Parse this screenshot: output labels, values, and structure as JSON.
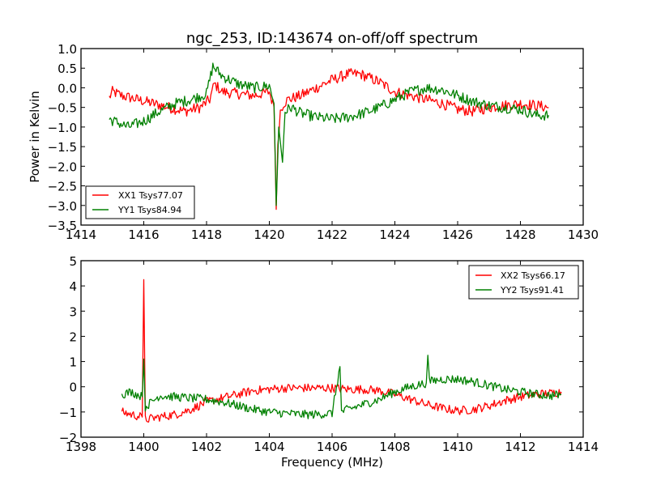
{
  "chart_data": [
    {
      "type": "line",
      "title": "ngc_253, ID:143674 on-off/off spectrum",
      "xlabel": "",
      "ylabel": "Power in Kelvin",
      "xlim": [
        1414,
        1430
      ],
      "ylim": [
        -3.5,
        1.0
      ],
      "xticks": [
        "1414",
        "1416",
        "1418",
        "1420",
        "1422",
        "1424",
        "1426",
        "1428",
        "1430"
      ],
      "yticks": [
        "−3.5",
        "−3.0",
        "−2.5",
        "−2.0",
        "−1.5",
        "−1.0",
        "−0.5",
        "0.0",
        "0.5",
        "1.0"
      ],
      "legend_position": "lower-left",
      "grid": false,
      "series": [
        {
          "name": "XX1 Tsys77.07",
          "color": "#ff0000",
          "x": [
            1414.9,
            1415.0,
            1415.3,
            1415.8,
            1416.3,
            1416.8,
            1417.3,
            1417.8,
            1418.1,
            1418.25,
            1418.5,
            1419.0,
            1419.5,
            1420.0,
            1420.15,
            1420.22,
            1420.27,
            1420.35,
            1420.45,
            1420.6,
            1421.0,
            1421.5,
            1422.0,
            1422.5,
            1422.9,
            1423.5,
            1424.0,
            1424.5,
            1425.0,
            1425.5,
            1426.0,
            1426.5,
            1427.0,
            1427.5,
            1428.0,
            1428.5,
            1428.9
          ],
          "y": [
            -0.25,
            -0.1,
            -0.2,
            -0.3,
            -0.4,
            -0.5,
            -0.6,
            -0.5,
            -0.3,
            0.1,
            -0.1,
            -0.15,
            -0.2,
            -0.1,
            -0.5,
            -3.1,
            -1.4,
            -0.6,
            -0.4,
            -0.3,
            -0.2,
            0.0,
            0.2,
            0.35,
            0.35,
            0.15,
            -0.1,
            -0.2,
            -0.3,
            -0.4,
            -0.55,
            -0.6,
            -0.5,
            -0.45,
            -0.4,
            -0.45,
            -0.5
          ]
        },
        {
          "name": "YY1 Tsys84.94",
          "color": "#008000",
          "x": [
            1414.9,
            1415.2,
            1415.5,
            1416.0,
            1416.5,
            1417.0,
            1417.5,
            1418.0,
            1418.2,
            1418.5,
            1419.0,
            1419.5,
            1420.0,
            1420.15,
            1420.22,
            1420.3,
            1420.42,
            1420.5,
            1420.7,
            1421.0,
            1421.5,
            1422.0,
            1422.5,
            1423.0,
            1423.5,
            1424.0,
            1424.5,
            1425.0,
            1425.5,
            1426.0,
            1426.5,
            1427.0,
            1427.5,
            1428.0,
            1428.5,
            1428.9
          ],
          "y": [
            -0.8,
            -0.9,
            -1.0,
            -0.85,
            -0.6,
            -0.4,
            -0.3,
            -0.15,
            0.55,
            0.3,
            0.1,
            0.0,
            0.05,
            -0.4,
            -3.0,
            -1.0,
            -1.9,
            -0.6,
            -0.5,
            -0.65,
            -0.75,
            -0.8,
            -0.75,
            -0.65,
            -0.5,
            -0.3,
            -0.1,
            0.0,
            -0.05,
            -0.2,
            -0.35,
            -0.45,
            -0.5,
            -0.55,
            -0.7,
            -0.7
          ]
        }
      ]
    },
    {
      "type": "line",
      "title": "",
      "xlabel": "Frequency (MHz)",
      "ylabel": "",
      "xlim": [
        1398,
        1414
      ],
      "ylim": [
        -2,
        5
      ],
      "xticks": [
        "1398",
        "1400",
        "1402",
        "1404",
        "1406",
        "1408",
        "1410",
        "1412",
        "1414"
      ],
      "yticks": [
        "−2",
        "−1",
        "0",
        "1",
        "2",
        "3",
        "4",
        "5"
      ],
      "legend_position": "upper-right",
      "grid": false,
      "series": [
        {
          "name": "XX2 Tsys66.17",
          "color": "#ff0000",
          "x": [
            1399.3,
            1399.6,
            1399.95,
            1400.0,
            1400.05,
            1400.5,
            1401.0,
            1401.5,
            1402.0,
            1402.5,
            1403.0,
            1403.5,
            1404.0,
            1404.5,
            1405.0,
            1405.5,
            1406.0,
            1406.5,
            1407.0,
            1407.5,
            1408.0,
            1408.5,
            1409.0,
            1409.5,
            1410.0,
            1410.5,
            1411.0,
            1411.5,
            1412.0,
            1412.5,
            1413.0,
            1413.3
          ],
          "y": [
            -1.0,
            -1.1,
            -1.2,
            4.25,
            -1.3,
            -1.2,
            -1.1,
            -0.9,
            -0.6,
            -0.45,
            -0.3,
            -0.15,
            -0.1,
            -0.05,
            -0.05,
            -0.05,
            -0.05,
            -0.1,
            -0.1,
            -0.15,
            -0.3,
            -0.5,
            -0.7,
            -0.85,
            -0.95,
            -0.9,
            -0.75,
            -0.55,
            -0.4,
            -0.3,
            -0.25,
            -0.2
          ]
        },
        {
          "name": "YY2 Tsys91.41",
          "color": "#008000",
          "x": [
            1399.3,
            1399.6,
            1399.95,
            1400.0,
            1400.05,
            1400.5,
            1401.0,
            1401.5,
            1402.0,
            1402.5,
            1403.0,
            1403.5,
            1404.0,
            1404.5,
            1405.0,
            1405.5,
            1406.0,
            1406.25,
            1406.3,
            1406.5,
            1407.0,
            1407.5,
            1408.0,
            1408.5,
            1409.0,
            1409.05,
            1409.1,
            1409.5,
            1410.0,
            1410.5,
            1411.0,
            1411.5,
            1412.0,
            1412.5,
            1413.0,
            1413.3
          ],
          "y": [
            -0.3,
            -0.2,
            -0.4,
            1.1,
            -0.8,
            -0.35,
            -0.4,
            -0.45,
            -0.5,
            -0.6,
            -0.75,
            -0.9,
            -1.0,
            -1.05,
            -1.1,
            -1.1,
            -1.05,
            0.8,
            -1.0,
            -0.9,
            -0.7,
            -0.5,
            -0.2,
            0.0,
            0.15,
            1.25,
            0.2,
            0.3,
            0.3,
            0.2,
            0.05,
            -0.1,
            -0.2,
            -0.3,
            -0.35,
            -0.3
          ]
        }
      ]
    }
  ]
}
